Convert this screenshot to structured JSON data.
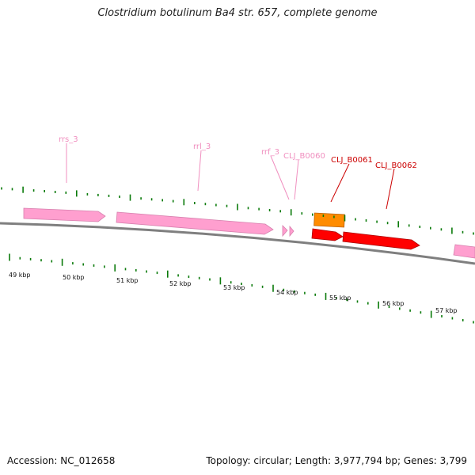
{
  "title": "Clostridium botulinum Ba4 str. 657, complete genome",
  "footer": {
    "accession": "Accession: NC_012658",
    "summary": "Topology: circular; Length: 3,977,794 bp; Genes: 3,799"
  },
  "axis_labels": [
    "49 kbp",
    "50 kbp",
    "51 kbp",
    "52 kbp",
    "53 kbp",
    "54 kbp",
    "55 kbp",
    "56 kbp",
    "57 kbp"
  ],
  "feature_labels": {
    "rrs_3": "rrs_3",
    "rrl_3": "rrl_3",
    "rrf_3": "rrf_3",
    "b0060": "CLJ_B0060",
    "b0061": "CLJ_B0061",
    "b0062": "CLJ_B0062"
  },
  "colors": {
    "rrna": "#ff9fcf",
    "rrna_label": "#f08fbf",
    "cds": "#ff0000",
    "cds_label": "#cc0000",
    "gene": "#ff8c00",
    "backbone": "#7f7f7f",
    "tick": "#0a7a0a"
  }
}
